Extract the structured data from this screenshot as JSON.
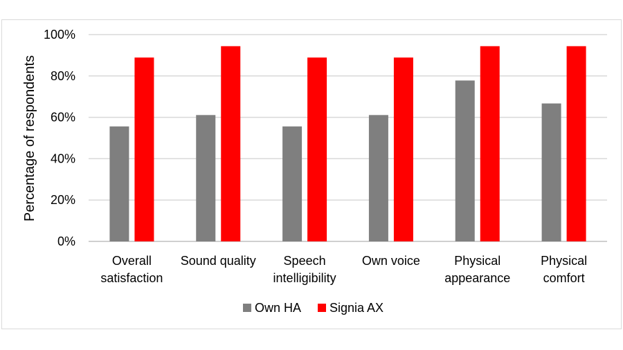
{
  "chart_data": {
    "type": "bar",
    "ylabel": "Percentage of respondents",
    "ylim": [
      0,
      100
    ],
    "yticks": [
      0,
      20,
      40,
      60,
      80,
      100
    ],
    "ytick_labels": [
      "0%",
      "20%",
      "40%",
      "60%",
      "80%",
      "100%"
    ],
    "categories": [
      [
        "Overall",
        "satisfaction"
      ],
      [
        "Sound quality"
      ],
      [
        "Speech",
        "intelligibility"
      ],
      [
        "Own voice"
      ],
      [
        "Physical",
        "appearance"
      ],
      [
        "Physical",
        "comfort"
      ]
    ],
    "series": [
      {
        "name": "Own HA",
        "color": "#7f7f7f",
        "values": [
          55.6,
          61.1,
          55.6,
          61.1,
          77.8,
          66.7
        ]
      },
      {
        "name": "Signia AX",
        "color": "#ff0000",
        "values": [
          88.9,
          94.4,
          88.9,
          88.9,
          94.4,
          94.4
        ]
      }
    ],
    "grid": true,
    "legend_position": "bottom"
  }
}
